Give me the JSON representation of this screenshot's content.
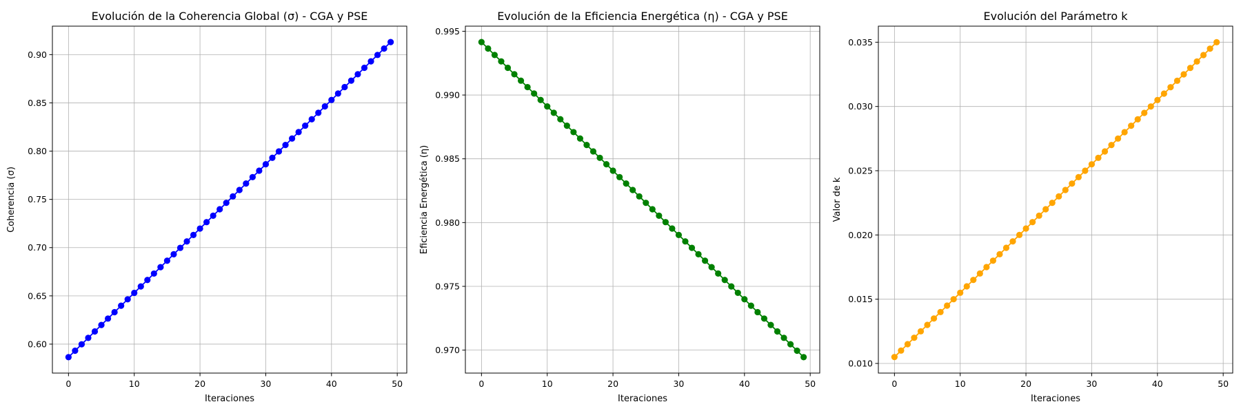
{
  "chart_data": [
    {
      "type": "line",
      "title": "Evolución de la Coherencia Global (σ) - CGA y PSE",
      "xlabel": "Iteraciones",
      "ylabel": "Coherencia (σ)",
      "xlim": [
        -2.45,
        51.45
      ],
      "ylim": [
        0.57,
        0.9295
      ],
      "xticks": [
        0,
        10,
        20,
        30,
        40,
        50
      ],
      "yticks": [
        0.6,
        0.65,
        0.7,
        0.75,
        0.8,
        0.85,
        0.9
      ],
      "ytick_labels": [
        "0.60",
        "0.65",
        "0.70",
        "0.75",
        "0.80",
        "0.85",
        "0.90"
      ],
      "grid": true,
      "marker": "circle",
      "series": [
        {
          "color": "#0000ff",
          "x_start": 0,
          "x_end": 49,
          "y_start": 0.5865,
          "y_end": 0.913
        }
      ]
    },
    {
      "type": "line",
      "title": "Evolución de la Eficiencia Energética (η) - CGA y PSE",
      "xlabel": "Iteraciones",
      "ylabel": "Eficiencia Energética (η)",
      "xlim": [
        -2.45,
        51.45
      ],
      "ylim": [
        0.9682,
        0.9954
      ],
      "xticks": [
        0,
        10,
        20,
        30,
        40,
        50
      ],
      "yticks": [
        0.97,
        0.975,
        0.98,
        0.985,
        0.99,
        0.995
      ],
      "ytick_labels": [
        "0.970",
        "0.975",
        "0.980",
        "0.985",
        "0.990",
        "0.995"
      ],
      "grid": true,
      "marker": "circle",
      "series": [
        {
          "color": "#008000",
          "x_start": 0,
          "x_end": 49,
          "y_start": 0.99415,
          "y_end": 0.96945
        }
      ]
    },
    {
      "type": "line",
      "title": "Evolución del Parámetro k",
      "xlabel": "Iteraciones",
      "ylabel": "Valor de k",
      "xlim": [
        -2.45,
        51.45
      ],
      "ylim": [
        0.00925,
        0.03625
      ],
      "xticks": [
        0,
        10,
        20,
        30,
        40,
        50
      ],
      "yticks": [
        0.01,
        0.015,
        0.02,
        0.025,
        0.03,
        0.035
      ],
      "ytick_labels": [
        "0.010",
        "0.015",
        "0.020",
        "0.025",
        "0.030",
        "0.035"
      ],
      "grid": true,
      "marker": "circle",
      "series": [
        {
          "color": "#ffa500",
          "x_start": 0,
          "x_end": 49,
          "y_start": 0.0105,
          "y_end": 0.035
        }
      ]
    }
  ]
}
